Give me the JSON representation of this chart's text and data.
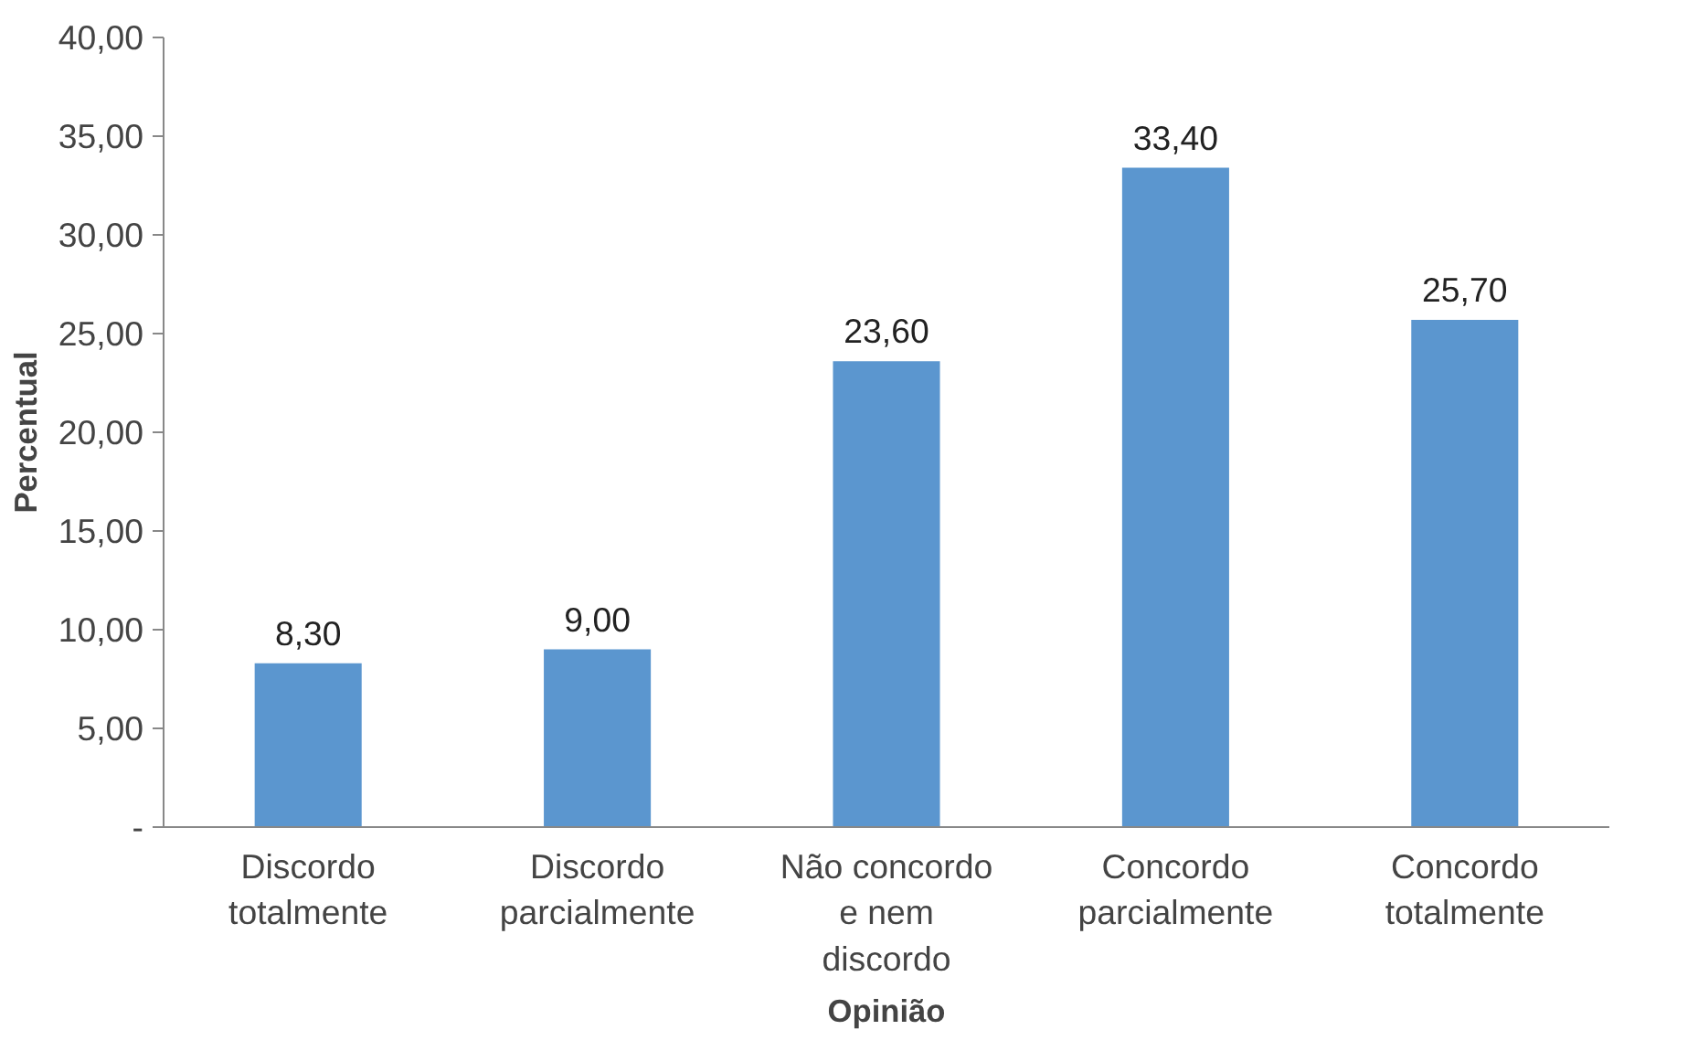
{
  "chart_data": {
    "type": "bar",
    "xlabel": "Opinião",
    "ylabel": "Percentual",
    "categories": [
      "Discordo totalmente",
      "Discordo parcialmente",
      "Não concordo e nem discordo",
      "Concordo parcialmente",
      "Concordo totalmente"
    ],
    "values": [
      8.3,
      9.0,
      23.6,
      33.4,
      25.7
    ],
    "value_labels": [
      "8,30",
      "9,00",
      "23,60",
      "33,40",
      "25,70"
    ],
    "color": "#5b96cf",
    "ylim": [
      0,
      40
    ],
    "yticks": [
      {
        "value": 0,
        "label": "-"
      },
      {
        "value": 5,
        "label": "5,00"
      },
      {
        "value": 10,
        "label": "10,00"
      },
      {
        "value": 15,
        "label": "15,00"
      },
      {
        "value": 20,
        "label": "20,00"
      },
      {
        "value": 25,
        "label": "25,00"
      },
      {
        "value": 30,
        "label": "30,00"
      },
      {
        "value": 35,
        "label": "35,00"
      },
      {
        "value": 40,
        "label": "40,00"
      }
    ],
    "grid": false
  }
}
